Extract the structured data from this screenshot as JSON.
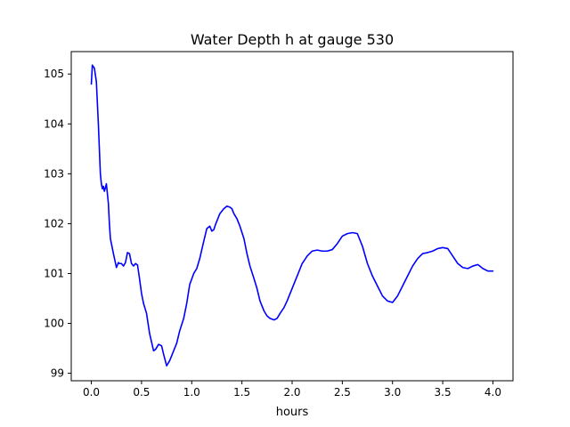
{
  "chart_data": {
    "type": "line",
    "title": "Water Depth h at gauge 530",
    "xlabel": "hours",
    "ylabel": "",
    "xlim": [
      -0.2,
      4.2
    ],
    "ylim": [
      98.85,
      105.45
    ],
    "xticks": [
      0.0,
      0.5,
      1.0,
      1.5,
      2.0,
      2.5,
      3.0,
      3.5,
      4.0
    ],
    "xtick_labels": [
      "0.0",
      "0.5",
      "1.0",
      "1.5",
      "2.0",
      "2.5",
      "3.0",
      "3.5",
      "4.0"
    ],
    "yticks": [
      99,
      100,
      101,
      102,
      103,
      104,
      105
    ],
    "ytick_labels": [
      "99",
      "100",
      "101",
      "102",
      "103",
      "104",
      "105"
    ],
    "grid": false,
    "legend": "none",
    "series": [
      {
        "color": "#0000ff",
        "x": [
          0.0,
          0.01,
          0.03,
          0.05,
          0.07,
          0.09,
          0.1,
          0.11,
          0.12,
          0.13,
          0.14,
          0.15,
          0.17,
          0.18,
          0.19,
          0.2,
          0.22,
          0.25,
          0.27,
          0.28,
          0.3,
          0.32,
          0.34,
          0.36,
          0.38,
          0.4,
          0.42,
          0.44,
          0.46,
          0.48,
          0.5,
          0.52,
          0.55,
          0.58,
          0.62,
          0.64,
          0.67,
          0.7,
          0.72,
          0.75,
          0.78,
          0.8,
          0.82,
          0.85,
          0.88,
          0.92,
          0.95,
          0.98,
          1.02,
          1.05,
          1.08,
          1.12,
          1.15,
          1.18,
          1.2,
          1.22,
          1.24,
          1.26,
          1.28,
          1.3,
          1.32,
          1.35,
          1.38,
          1.4,
          1.42,
          1.45,
          1.48,
          1.52,
          1.55,
          1.58,
          1.62,
          1.65,
          1.68,
          1.72,
          1.75,
          1.78,
          1.82,
          1.85,
          1.88,
          1.92,
          1.95,
          2.0,
          2.05,
          2.1,
          2.15,
          2.2,
          2.25,
          2.3,
          2.35,
          2.4,
          2.45,
          2.5,
          2.55,
          2.6,
          2.65,
          2.7,
          2.75,
          2.8,
          2.85,
          2.9,
          2.95,
          3.0,
          3.05,
          3.1,
          3.15,
          3.2,
          3.25,
          3.3,
          3.35,
          3.4,
          3.45,
          3.5,
          3.55,
          3.6,
          3.65,
          3.7,
          3.75,
          3.8,
          3.85,
          3.9,
          3.95,
          4.0
        ],
        "y": [
          104.8,
          105.18,
          105.12,
          104.85,
          104.0,
          103.0,
          102.8,
          102.7,
          102.75,
          102.65,
          102.72,
          102.8,
          102.4,
          102.0,
          101.7,
          101.6,
          101.4,
          101.12,
          101.22,
          101.2,
          101.2,
          101.15,
          101.22,
          101.42,
          101.4,
          101.2,
          101.15,
          101.2,
          101.17,
          100.9,
          100.6,
          100.4,
          100.2,
          99.8,
          99.45,
          99.48,
          99.58,
          99.55,
          99.38,
          99.15,
          99.25,
          99.35,
          99.45,
          99.6,
          99.85,
          100.1,
          100.4,
          100.78,
          101.0,
          101.1,
          101.3,
          101.65,
          101.9,
          101.95,
          101.85,
          101.88,
          102.0,
          102.1,
          102.2,
          102.25,
          102.3,
          102.35,
          102.33,
          102.3,
          102.2,
          102.1,
          101.95,
          101.7,
          101.4,
          101.15,
          100.9,
          100.7,
          100.45,
          100.25,
          100.15,
          100.1,
          100.07,
          100.1,
          100.2,
          100.32,
          100.45,
          100.7,
          100.95,
          101.2,
          101.35,
          101.45,
          101.47,
          101.45,
          101.45,
          101.48,
          101.6,
          101.75,
          101.8,
          101.82,
          101.8,
          101.55,
          101.2,
          100.95,
          100.75,
          100.55,
          100.45,
          100.42,
          100.55,
          100.75,
          100.95,
          101.15,
          101.3,
          101.4,
          101.42,
          101.45,
          101.5,
          101.52,
          101.5,
          101.35,
          101.2,
          101.12,
          101.1,
          101.15,
          101.18,
          101.1,
          101.05,
          101.05
        ]
      }
    ]
  }
}
